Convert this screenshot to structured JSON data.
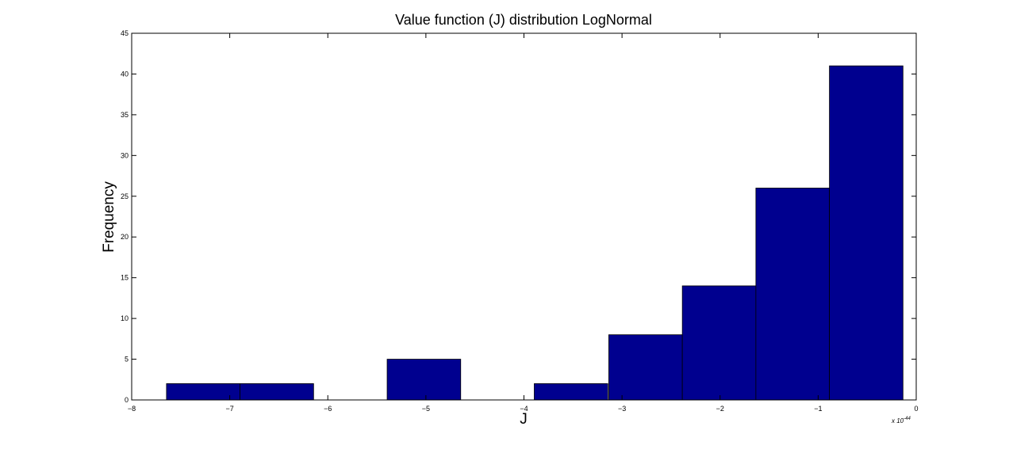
{
  "chart_data": {
    "type": "bar",
    "title": "Value function (J) distribution LogNormal",
    "xlabel": "J",
    "ylabel": "Frequency",
    "x_multiplier": "x 10",
    "x_multiplier_exponent": "-44",
    "xlim": [
      -8,
      0
    ],
    "ylim": [
      0,
      45
    ],
    "xticks": [
      "-8",
      "-7",
      "-6",
      "-5",
      "-4",
      "-3",
      "-2",
      "-1",
      "0"
    ],
    "yticks": [
      "0",
      "5",
      "10",
      "15",
      "20",
      "25",
      "30",
      "35",
      "40",
      "45"
    ],
    "bin_centers": [
      -7.27,
      -6.52,
      -5.77,
      -5.02,
      -4.27,
      -3.52,
      -2.76,
      -2.01,
      -1.26,
      -0.51
    ],
    "bin_width": 0.75,
    "values": [
      2,
      2,
      0,
      5,
      0,
      2,
      8,
      14,
      26,
      41
    ],
    "bar_color": "#00008F",
    "grid": false,
    "legend": "none"
  }
}
